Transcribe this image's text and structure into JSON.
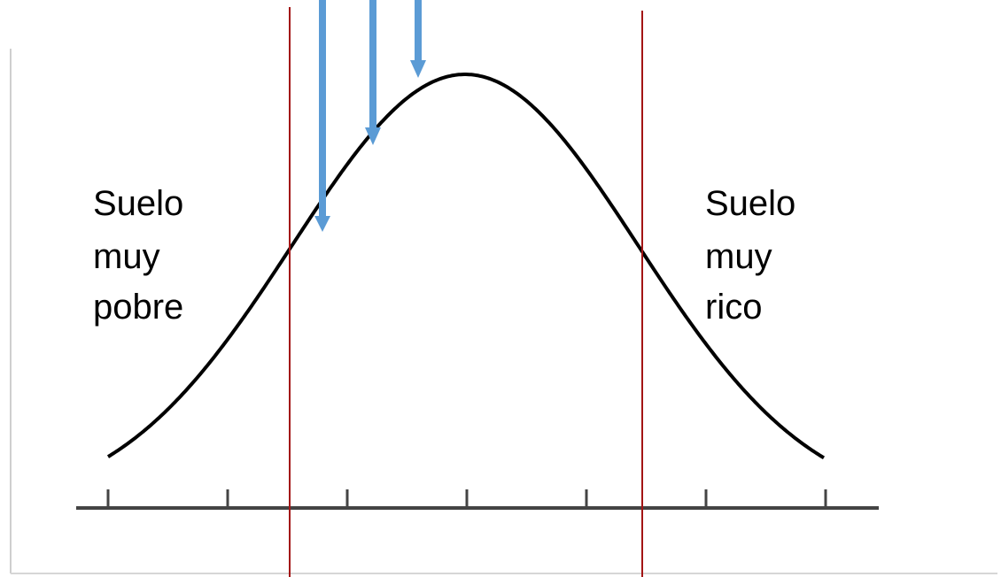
{
  "diagram": {
    "type": "normal-distribution-curve",
    "left_label": {
      "lines": [
        "Suelo",
        "muy",
        "pobre"
      ]
    },
    "right_label": {
      "lines": [
        "Suelo",
        "muy",
        "rico"
      ]
    },
    "tick_count": 7,
    "arrow_count": 3,
    "threshold_line_count": 2
  },
  "colors": {
    "curve": "#000000",
    "axis": "#444444",
    "threshold_lines": "#a31515",
    "arrows": "#5b9bd5",
    "label_text": "#000000",
    "frame": "#cfcfcf"
  }
}
